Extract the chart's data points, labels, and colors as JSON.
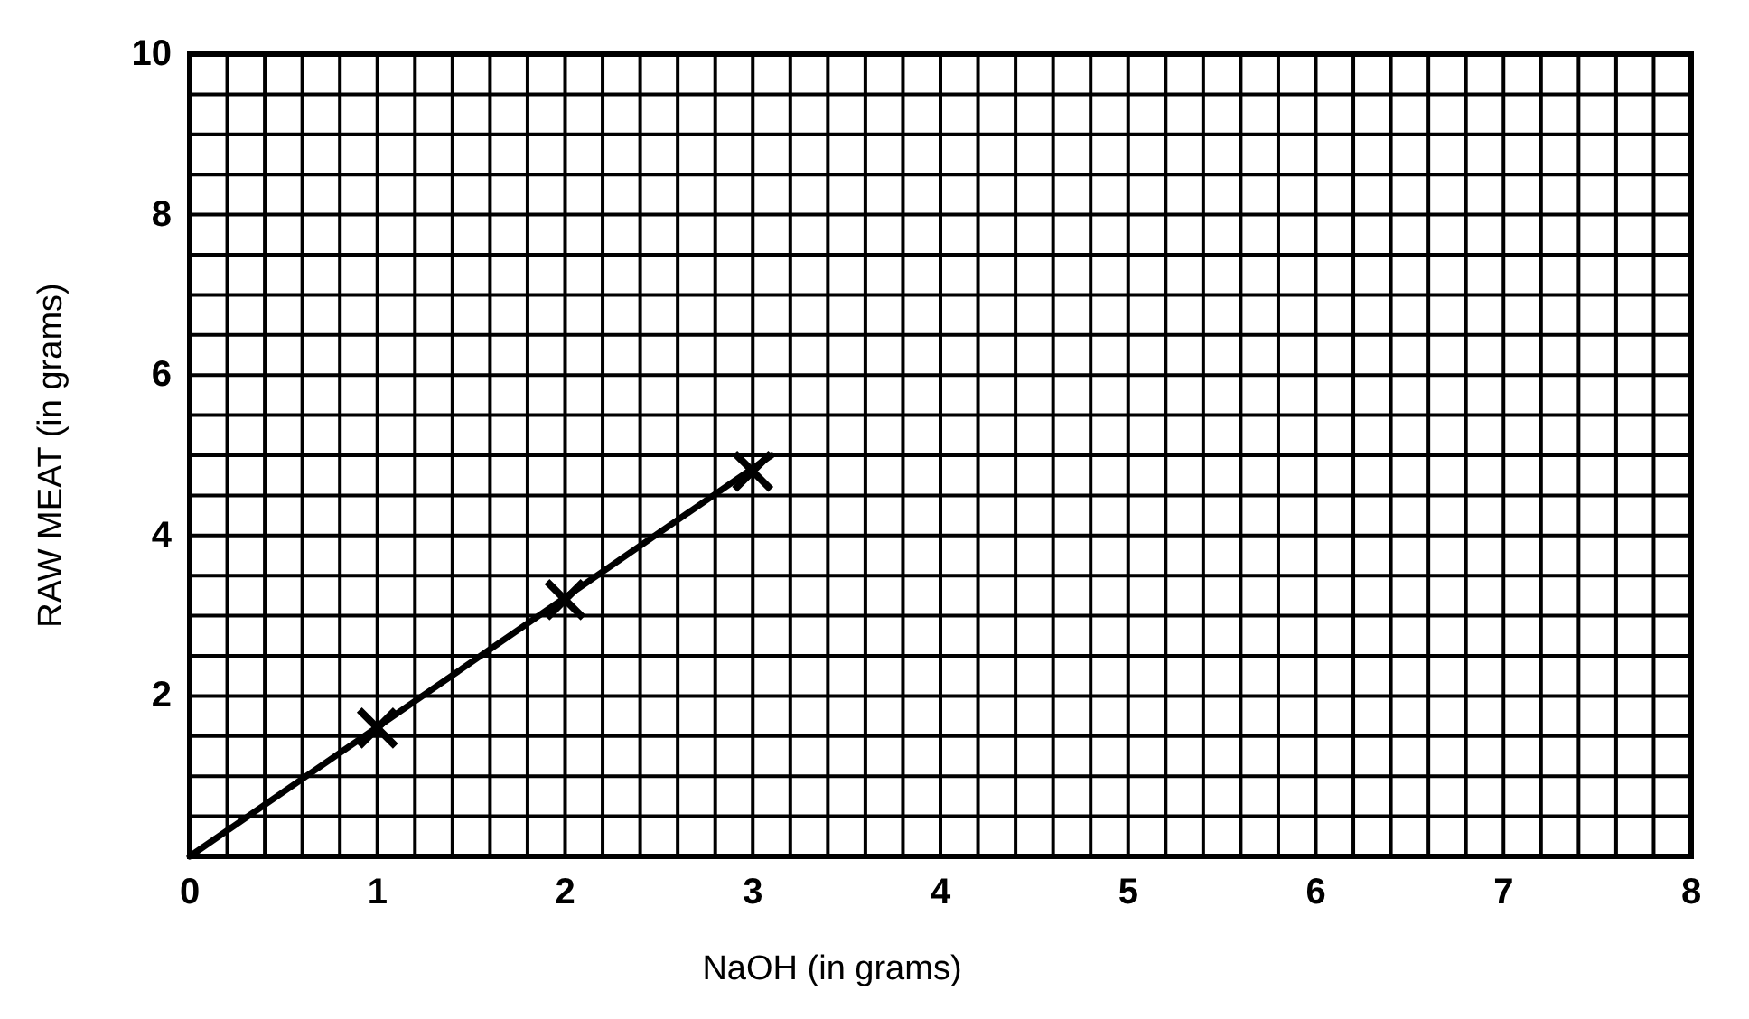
{
  "chart_data": {
    "type": "scatter",
    "xlabel": "NaOH (in grams)",
    "ylabel": "RAW MEAT (in grams)",
    "xlim": [
      0,
      8
    ],
    "ylim": [
      0,
      10
    ],
    "xticks": [
      0,
      {
        "value": 0.2,
        "label": null
      },
      {
        "value": 0.4,
        "label": null
      },
      {
        "value": 0.6,
        "label": null
      },
      {
        "value": 0.8,
        "label": null
      },
      1,
      {
        "value": 1.2,
        "label": null
      },
      {
        "value": 1.4,
        "label": null
      },
      {
        "value": 1.6,
        "label": null
      },
      {
        "value": 1.8,
        "label": null
      },
      2,
      {
        "value": 2.2,
        "label": null
      },
      {
        "value": 2.4,
        "label": null
      },
      {
        "value": 2.6,
        "label": null
      },
      {
        "value": 2.8,
        "label": null
      },
      3,
      {
        "value": 3.2,
        "label": null
      },
      {
        "value": 3.4,
        "label": null
      },
      {
        "value": 3.6,
        "label": null
      },
      {
        "value": 3.8,
        "label": null
      },
      4,
      {
        "value": 4.2,
        "label": null
      },
      {
        "value": 4.4,
        "label": null
      },
      {
        "value": 4.6,
        "label": null
      },
      {
        "value": 4.8,
        "label": null
      },
      5,
      {
        "value": 5.2,
        "label": null
      },
      {
        "value": 5.4,
        "label": null
      },
      {
        "value": 5.6,
        "label": null
      },
      {
        "value": 5.8,
        "label": null
      },
      6,
      {
        "value": 6.2,
        "label": null
      },
      {
        "value": 6.4,
        "label": null
      },
      {
        "value": 6.6,
        "label": null
      },
      {
        "value": 6.8,
        "label": null
      },
      7,
      {
        "value": 7.2,
        "label": null
      },
      {
        "value": 7.4,
        "label": null
      },
      {
        "value": 7.6,
        "label": null
      },
      {
        "value": 7.8,
        "label": null
      },
      8
    ],
    "yticks": [
      {
        "value": 0,
        "label": null
      },
      {
        "value": 0.5,
        "label": null
      },
      {
        "value": 1,
        "label": null
      },
      {
        "value": 1.5,
        "label": null
      },
      2,
      {
        "value": 2.5,
        "label": null
      },
      {
        "value": 3,
        "label": null
      },
      {
        "value": 3.5,
        "label": null
      },
      4,
      {
        "value": 4.5,
        "label": null
      },
      {
        "value": 5,
        "label": null
      },
      {
        "value": 5.5,
        "label": null
      },
      6,
      {
        "value": 6.5,
        "label": null
      },
      {
        "value": 7,
        "label": null
      },
      {
        "value": 7.5,
        "label": null
      },
      8,
      {
        "value": 8.5,
        "label": null
      },
      {
        "value": 9,
        "label": null
      },
      {
        "value": 9.5,
        "label": null
      },
      10
    ],
    "grid": true,
    "series": [
      {
        "type": "line",
        "color": "#000000",
        "marker": "none",
        "x": [
          0,
          3.1
        ],
        "values": [
          0,
          5.0
        ]
      },
      {
        "color": "#000000",
        "marker": "cross",
        "x": [
          1,
          2,
          3
        ],
        "values": [
          1.6,
          3.2,
          4.8
        ]
      }
    ]
  }
}
